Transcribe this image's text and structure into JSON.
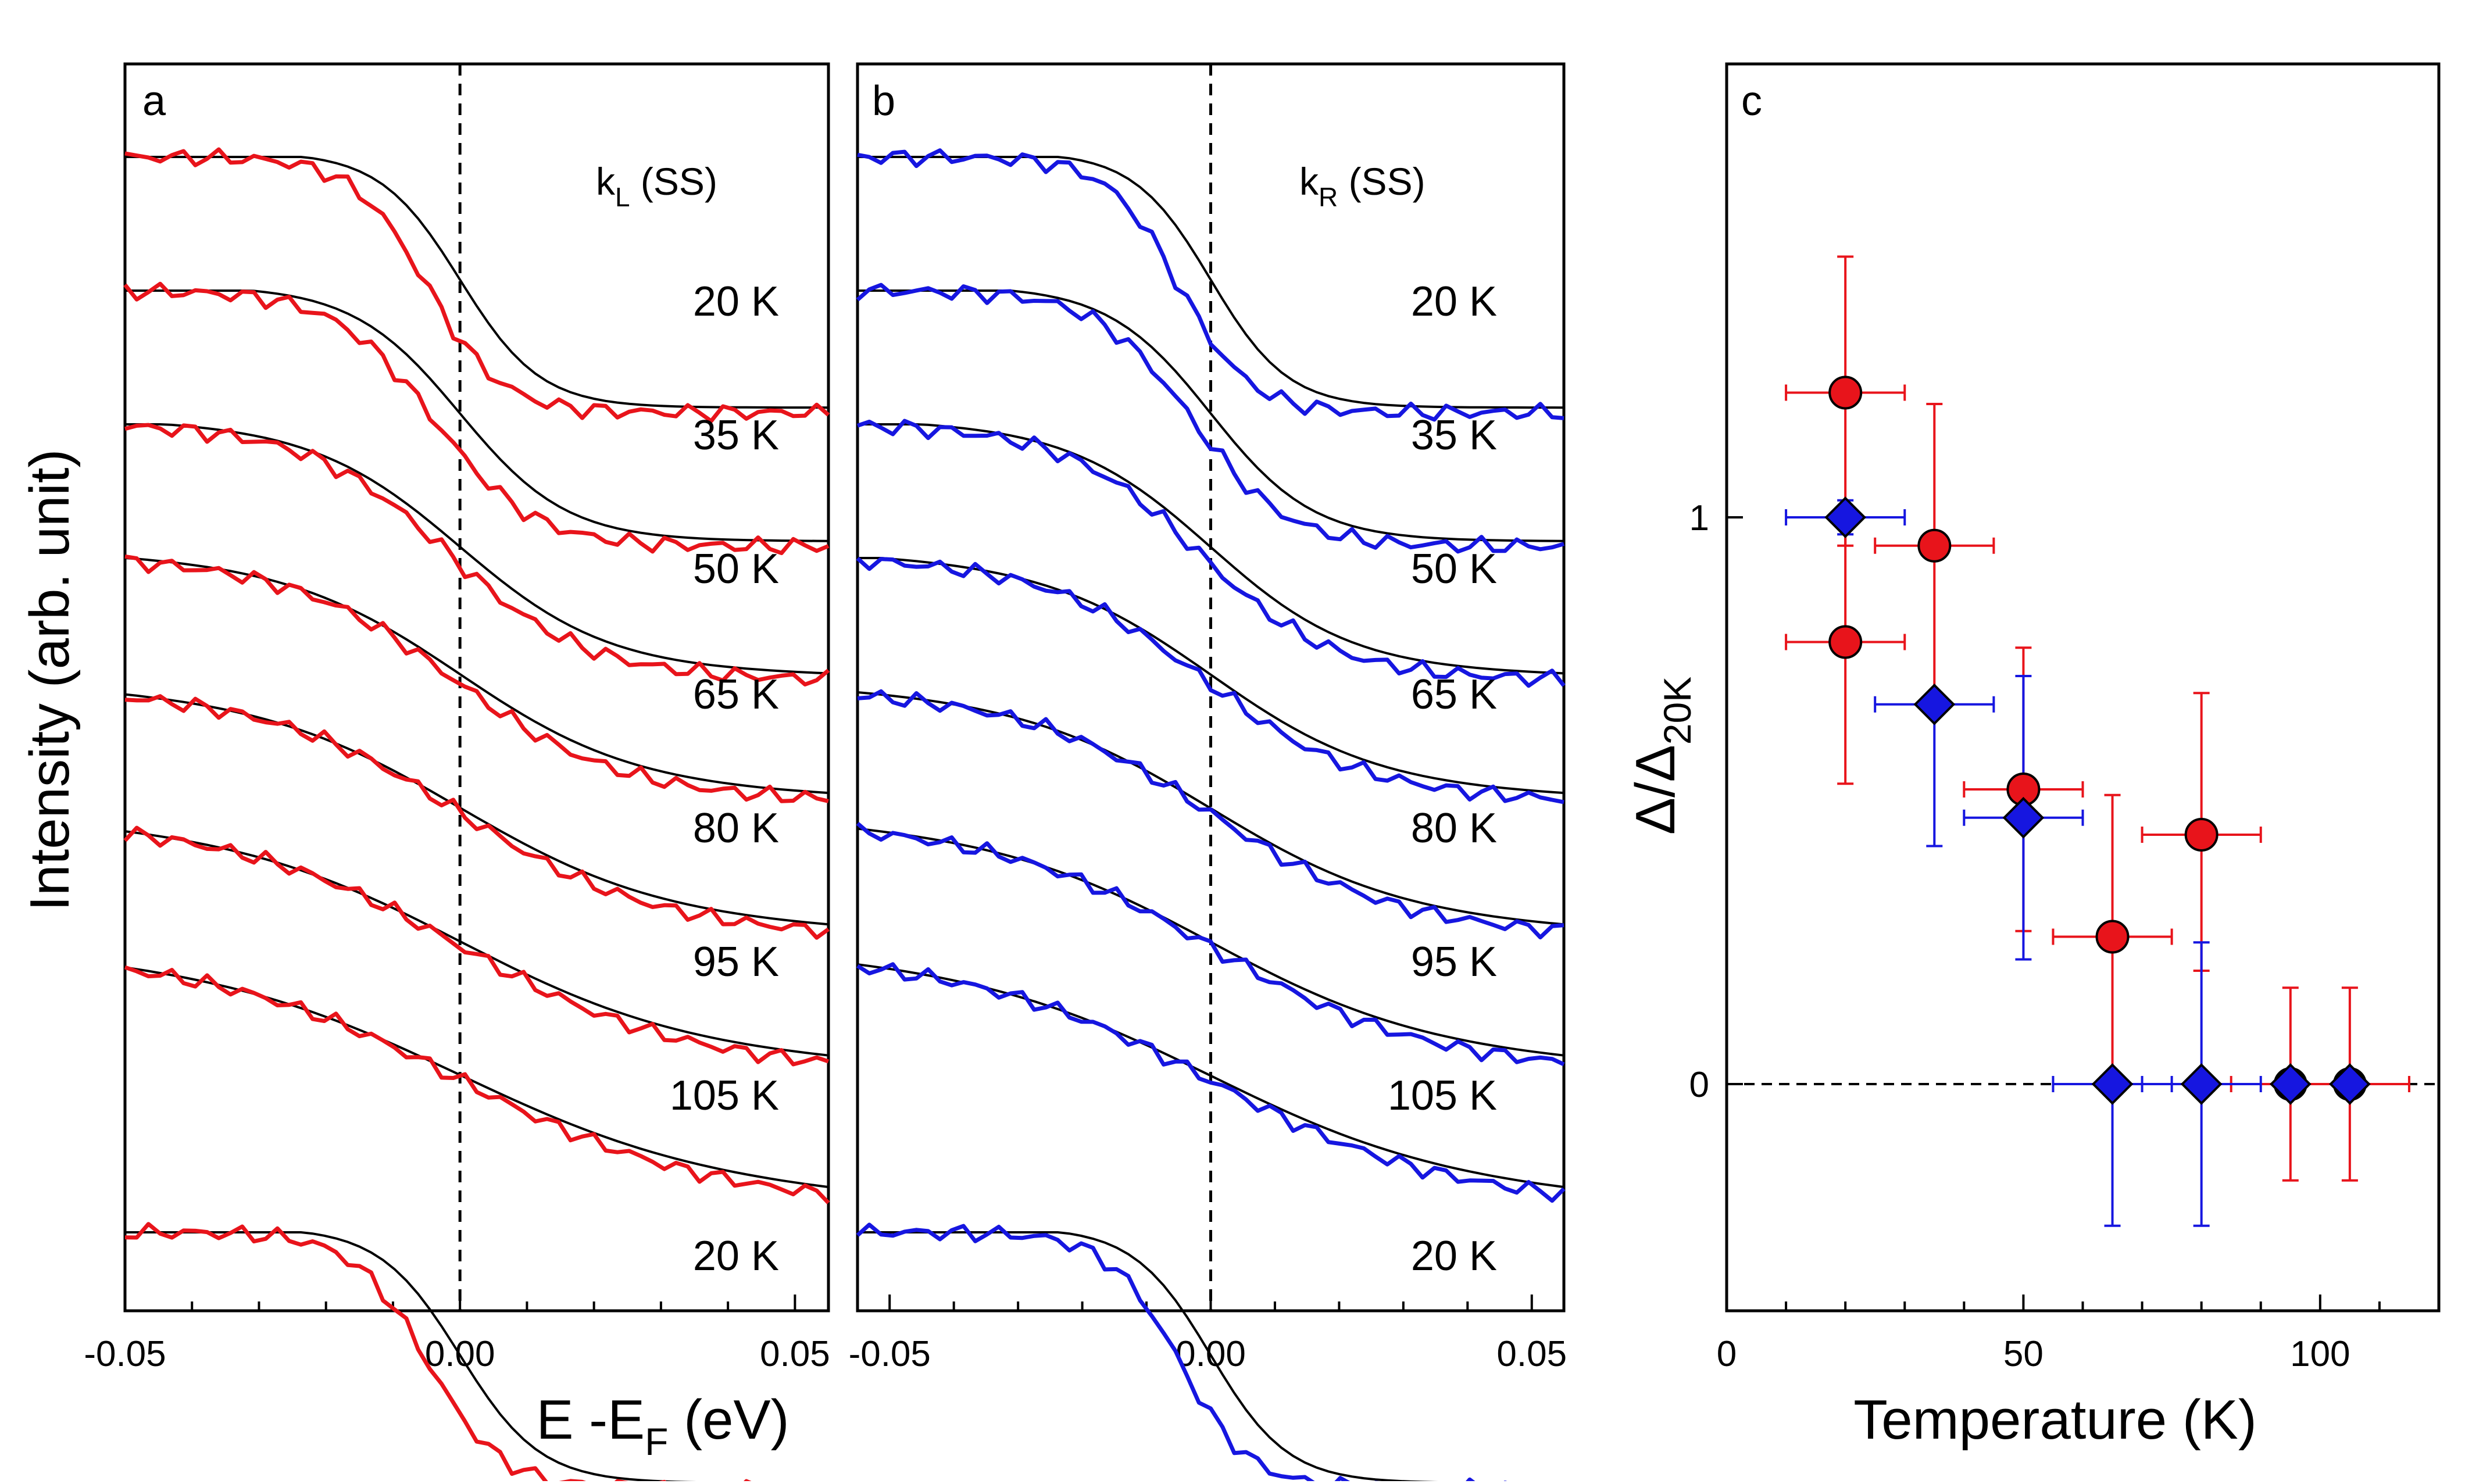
{
  "figure": {
    "y_axis_title": "Intensity (arb. unit)",
    "x_axis_title": {
      "main": "E -E",
      "sub": "F",
      "suffix": " (eV)"
    }
  },
  "chart_data": [
    {
      "id": "a",
      "type": "line",
      "panel_label": "a",
      "title": {
        "main": "k",
        "sub": "L",
        "suffix": " (SS)"
      },
      "xlabel": "E -E_F (eV)",
      "ylabel": "Intensity (arb. unit)",
      "xlim": [
        -0.05,
        0.055
      ],
      "x_ticks": [
        "-0.05",
        "0.00",
        "0.05"
      ],
      "data_color": "#e8141b",
      "fit_color": "#000000",
      "fermi_level": 0.0,
      "series": [
        {
          "label": "20 K",
          "offset": 0.0,
          "amplitude": 1.0,
          "width": 0.006,
          "shift": -0.005,
          "slope": 0.0
        },
        {
          "label": "35 K",
          "offset": 1.0,
          "amplitude": 1.0,
          "width": 0.008,
          "shift": -0.004,
          "slope": 0.0
        },
        {
          "label": "50 K",
          "offset": 2.0,
          "amplitude": 1.0,
          "width": 0.011,
          "shift": -0.002,
          "slope": 0.05
        },
        {
          "label": "65 K",
          "offset": 3.0,
          "amplitude": 0.95,
          "width": 0.013,
          "shift": -0.001,
          "slope": 0.08
        },
        {
          "label": "80 K",
          "offset": 4.0,
          "amplitude": 0.95,
          "width": 0.015,
          "shift": 0.0,
          "slope": 0.1
        },
        {
          "label": "95 K",
          "offset": 5.0,
          "amplitude": 0.95,
          "width": 0.017,
          "shift": 0.0,
          "slope": 0.12
        },
        {
          "label": "105 K",
          "offset": 6.0,
          "amplitude": 0.95,
          "width": 0.0185,
          "shift": 0.0,
          "slope": 0.14
        },
        {
          "label": "20 K",
          "offset": 7.0,
          "amplitude": 1.0,
          "width": 0.006,
          "shift": -0.005,
          "slope": 0.0
        }
      ]
    },
    {
      "id": "b",
      "type": "line",
      "panel_label": "b",
      "title": {
        "main": "k",
        "sub": "R",
        "suffix": " (SS)"
      },
      "xlabel": "E -E_F (eV)",
      "ylabel": "Intensity (arb. unit)",
      "xlim": [
        -0.055,
        0.055
      ],
      "x_ticks": [
        "-0.05",
        "0.00",
        "0.05"
      ],
      "data_color": "#1616e0",
      "fit_color": "#000000",
      "fermi_level": 0.0,
      "series": [
        {
          "label": "20 K",
          "offset": 0.0,
          "amplitude": 1.0,
          "width": 0.006,
          "shift": -0.005,
          "slope": 0.0
        },
        {
          "label": "35 K",
          "offset": 1.0,
          "amplitude": 1.0,
          "width": 0.008,
          "shift": -0.003,
          "slope": 0.0
        },
        {
          "label": "50 K",
          "offset": 2.0,
          "amplitude": 1.0,
          "width": 0.011,
          "shift": -0.002,
          "slope": 0.05
        },
        {
          "label": "65 K",
          "offset": 3.0,
          "amplitude": 0.95,
          "width": 0.013,
          "shift": -0.001,
          "slope": 0.08
        },
        {
          "label": "80 K",
          "offset": 4.0,
          "amplitude": 0.95,
          "width": 0.015,
          "shift": 0.0,
          "slope": 0.1
        },
        {
          "label": "95 K",
          "offset": 5.0,
          "amplitude": 0.95,
          "width": 0.017,
          "shift": 0.0,
          "slope": 0.12
        },
        {
          "label": "105 K",
          "offset": 6.0,
          "amplitude": 0.95,
          "width": 0.0185,
          "shift": 0.0,
          "slope": 0.14
        },
        {
          "label": "20 K",
          "offset": 7.0,
          "amplitude": 1.0,
          "width": 0.006,
          "shift": -0.005,
          "slope": 0.0
        }
      ]
    },
    {
      "id": "c",
      "type": "scatter",
      "panel_label": "c",
      "xlabel": "Temperature (K)",
      "ylabel": {
        "main": "Δ/Δ",
        "sub": "20K"
      },
      "xlim": [
        0,
        120
      ],
      "ylim": [
        -0.4,
        1.8
      ],
      "x_ticks": [
        0,
        50,
        100
      ],
      "y_ticks": [
        0,
        1
      ],
      "zero_line": true,
      "series": [
        {
          "name": "k_L (SS)",
          "marker": "circle",
          "color": "#e8141b",
          "points": [
            {
              "x": 20,
              "y": 1.22,
              "xerr": 10,
              "yerr_lo": 0.27,
              "yerr_hi": 0.24
            },
            {
              "x": 20,
              "y": 0.78,
              "xerr": 10,
              "yerr_lo": 0.25,
              "yerr_hi": 0.24
            },
            {
              "x": 35,
              "y": 0.95,
              "xerr": 10,
              "yerr_lo": 0.26,
              "yerr_hi": 0.25
            },
            {
              "x": 50,
              "y": 0.52,
              "xerr": 10,
              "yerr_lo": 0.25,
              "yerr_hi": 0.25
            },
            {
              "x": 65,
              "y": 0.26,
              "xerr": 10,
              "yerr_lo": 0.26,
              "yerr_hi": 0.25
            },
            {
              "x": 80,
              "y": 0.44,
              "xerr": 10,
              "yerr_lo": 0.24,
              "yerr_hi": 0.25
            },
            {
              "x": 95,
              "y": 0.0,
              "xerr": 10,
              "yerr_lo": 0.17,
              "yerr_hi": 0.17
            },
            {
              "x": 105,
              "y": 0.0,
              "xerr": 10,
              "yerr_lo": 0.17,
              "yerr_hi": 0.17
            }
          ]
        },
        {
          "name": "k_R (SS)",
          "marker": "diamond",
          "color": "#1616e0",
          "points": [
            {
              "x": 20,
              "y": 1.0,
              "xerr": 10,
              "yerr_lo": 0.03,
              "yerr_hi": 0.03
            },
            {
              "x": 35,
              "y": 0.67,
              "xerr": 10,
              "yerr_lo": 0.25,
              "yerr_hi": 0.0
            },
            {
              "x": 50,
              "y": 0.47,
              "xerr": 10,
              "yerr_lo": 0.25,
              "yerr_hi": 0.25
            },
            {
              "x": 65,
              "y": 0.0,
              "xerr": 10,
              "yerr_lo": 0.25,
              "yerr_hi": 0.0
            },
            {
              "x": 80,
              "y": 0.0,
              "xerr": 10,
              "yerr_lo": 0.25,
              "yerr_hi": 0.25
            },
            {
              "x": 95,
              "y": 0.0,
              "xerr": 0,
              "yerr_lo": 0.0,
              "yerr_hi": 0.0
            },
            {
              "x": 105,
              "y": 0.0,
              "xerr": 0,
              "yerr_lo": 0.0,
              "yerr_hi": 0.0
            }
          ]
        }
      ]
    }
  ]
}
